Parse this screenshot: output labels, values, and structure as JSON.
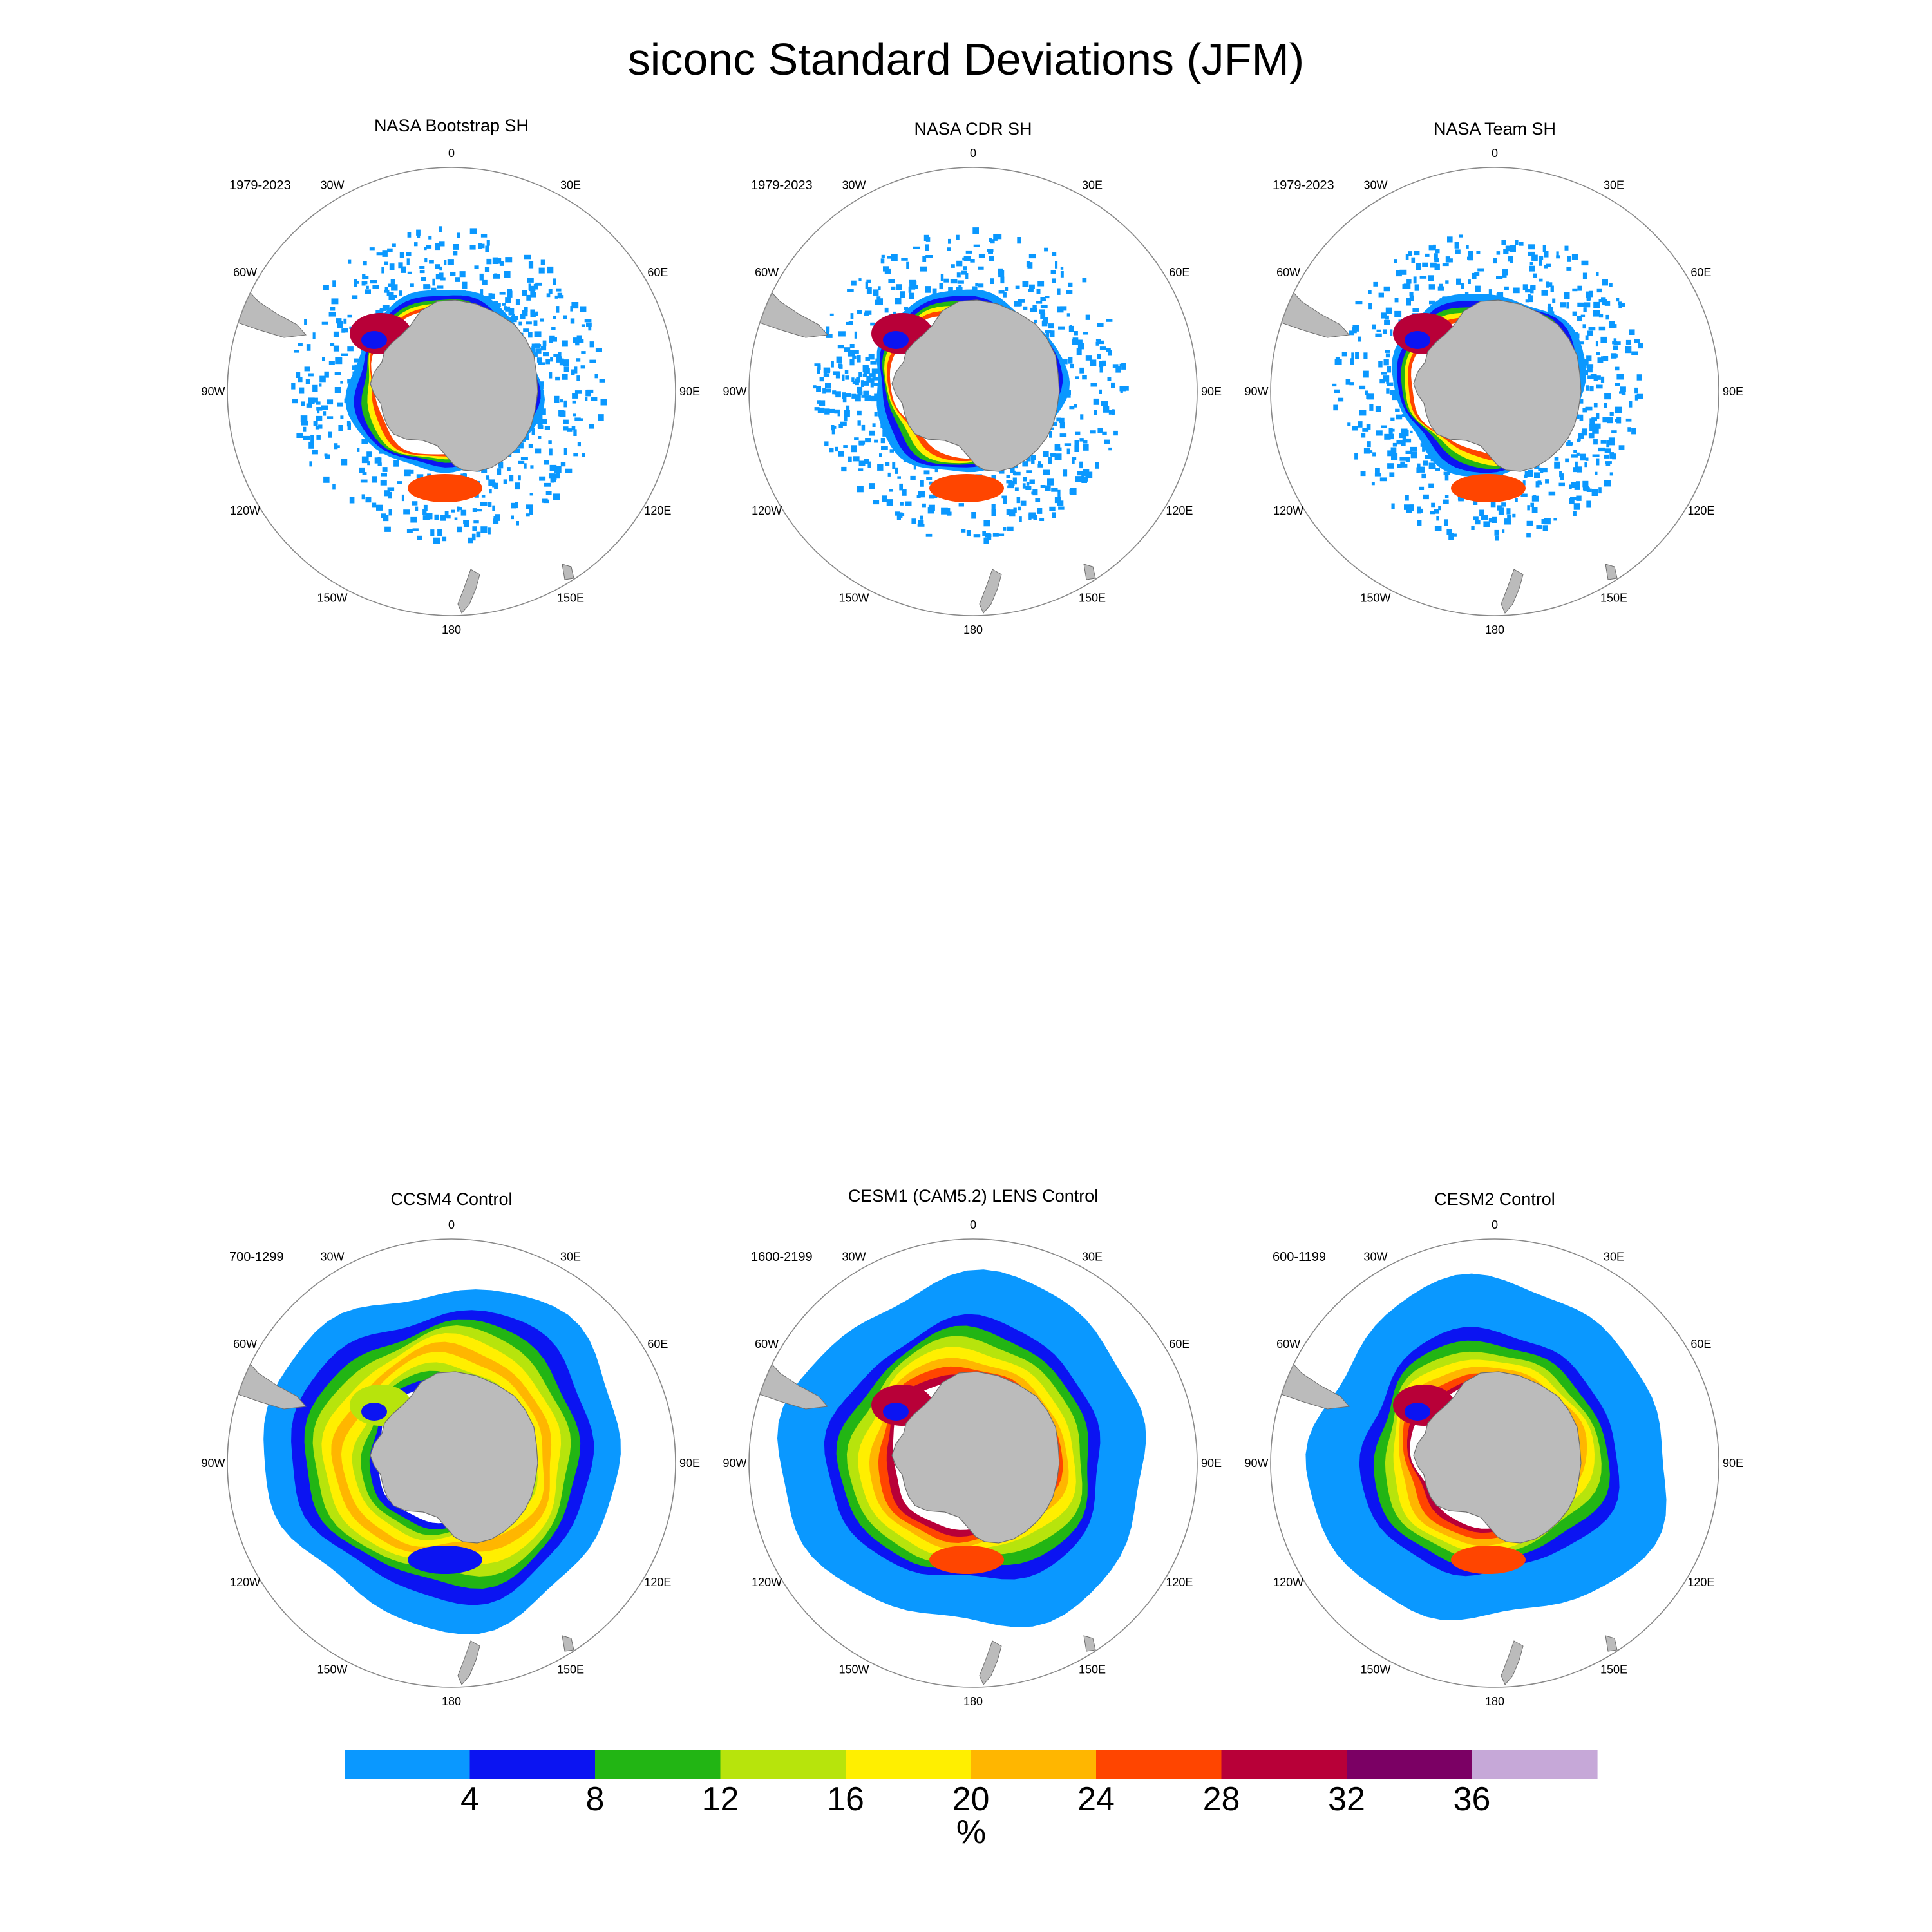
{
  "title": "siconc Standard Deviations (JFM)",
  "panels": [
    {
      "title": "NASA Bootstrap SH",
      "years": "1979-2023"
    },
    {
      "title": "NASA CDR SH",
      "years": "1979-2023"
    },
    {
      "title": "NASA Team SH",
      "years": "1979-2023"
    },
    {
      "title": "CCSM4 Control",
      "years": "700-1299"
    },
    {
      "title": "CESM1 (CAM5.2) LENS Control",
      "years": "1600-2199"
    },
    {
      "title": "CESM2 Control",
      "years": "600-1199"
    }
  ],
  "longitude_labels": [
    "0",
    "30E",
    "60E",
    "90E",
    "120E",
    "150E",
    "180",
    "150W",
    "120W",
    "90W",
    "60W",
    "30W"
  ],
  "colorbar": {
    "colors": [
      "#0a98ff",
      "#0b14f2",
      "#22b514",
      "#b7e40c",
      "#ffef00",
      "#ffb600",
      "#ff4500",
      "#b80038",
      "#7b0064",
      "#c6a8d8"
    ],
    "ticks": [
      "4",
      "8",
      "12",
      "16",
      "20",
      "24",
      "28",
      "32",
      "36"
    ],
    "units": "%"
  },
  "colors": {
    "land": "#bbbbbb",
    "coast": "#6e6e6e",
    "circle": "#888888"
  }
}
